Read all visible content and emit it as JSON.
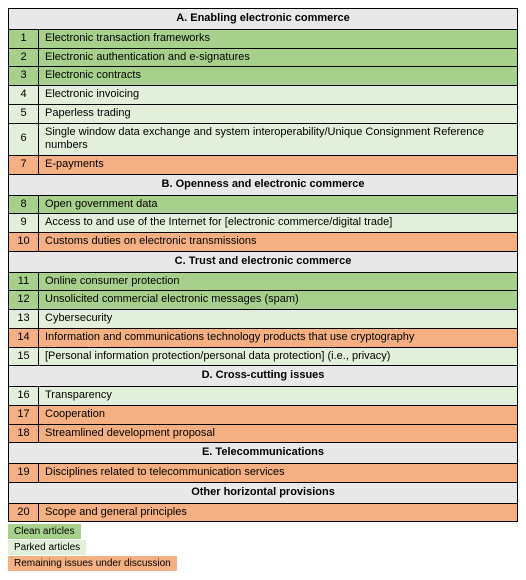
{
  "colors": {
    "clean": "#a8d08d",
    "parked": "#e2efda",
    "remaining": "#f4b083",
    "header": "#e8e8e8",
    "border": "#000000"
  },
  "sections": [
    {
      "title": "A. Enabling electronic commerce",
      "rows": [
        {
          "n": "1",
          "label": "Electronic transaction frameworks",
          "c": "clean"
        },
        {
          "n": "2",
          "label": "Electronic authentication and e-signatures",
          "c": "clean"
        },
        {
          "n": "3",
          "label": "Electronic contracts",
          "c": "clean"
        },
        {
          "n": "4",
          "label": "Electronic invoicing",
          "c": "parked"
        },
        {
          "n": "5",
          "label": "Paperless trading",
          "c": "parked"
        },
        {
          "n": "6",
          "label": "Single window data exchange and system interoperability/Unique Consignment Reference numbers",
          "c": "parked"
        },
        {
          "n": "7",
          "label": "E-payments",
          "c": "remaining"
        }
      ]
    },
    {
      "title": "B. Openness and electronic commerce",
      "rows": [
        {
          "n": "8",
          "label": "Open government data",
          "c": "clean"
        },
        {
          "n": "9",
          "label": "Access to and use of the Internet for [electronic commerce/digital trade]",
          "c": "parked"
        },
        {
          "n": "10",
          "label": "Customs duties on electronic transmissions",
          "c": "remaining"
        }
      ]
    },
    {
      "title": "C. Trust and electronic commerce",
      "rows": [
        {
          "n": "11",
          "label": "Online consumer protection",
          "c": "clean"
        },
        {
          "n": "12",
          "label": "Unsolicited commercial electronic messages (spam)",
          "c": "clean"
        },
        {
          "n": "13",
          "label": "Cybersecurity",
          "c": "parked"
        },
        {
          "n": "14",
          "label": "Information and communications technology products that use cryptography",
          "c": "remaining"
        },
        {
          "n": "15",
          "label": "[Personal information protection/personal data protection] (i.e., privacy)",
          "c": "parked"
        }
      ]
    },
    {
      "title": "D. Cross-cutting issues",
      "rows": [
        {
          "n": "16",
          "label": "Transparency",
          "c": "parked"
        },
        {
          "n": "17",
          "label": "Cooperation",
          "c": "remaining"
        },
        {
          "n": "18",
          "label": "Streamlined development proposal",
          "c": "remaining"
        }
      ]
    },
    {
      "title": "E. Telecommunications",
      "rows": [
        {
          "n": "19",
          "label": "Disciplines related to telecommunication services",
          "c": "remaining"
        }
      ]
    },
    {
      "title": "Other horizontal provisions",
      "rows": [
        {
          "n": "20",
          "label": "Scope and general principles",
          "c": "remaining"
        }
      ]
    }
  ],
  "legend": [
    {
      "label": "Clean articles",
      "c": "clean"
    },
    {
      "label": "Parked articles",
      "c": "parked"
    },
    {
      "label": "Remaining issues under discussion",
      "c": "remaining"
    }
  ]
}
